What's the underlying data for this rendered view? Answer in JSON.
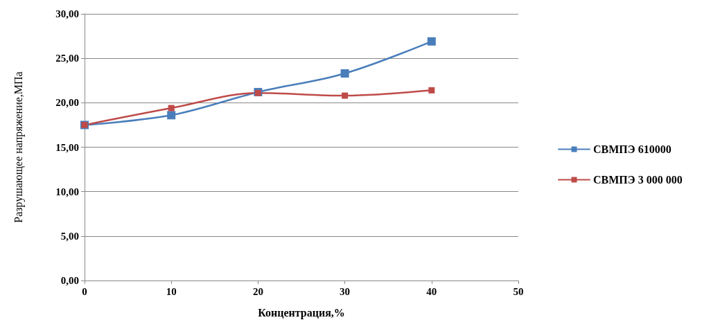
{
  "chart_data": {
    "type": "line",
    "xlabel": "Концентрация,%",
    "ylabel": "Разрушающее напряжение,МПа",
    "series": [
      {
        "name": "СВМПЭ 610000",
        "color": "#4a7ebb",
        "x": [
          0,
          10,
          20,
          30,
          40
        ],
        "values": [
          17.5,
          18.6,
          21.2,
          23.3,
          26.9
        ]
      },
      {
        "name": "СВМПЭ 3 000 000",
        "color": "#be4b48",
        "x": [
          0,
          10,
          20,
          30,
          40
        ],
        "values": [
          17.5,
          19.4,
          21.1,
          20.8,
          21.4
        ]
      }
    ],
    "xlim": [
      0,
      50
    ],
    "xticks": [
      0,
      10,
      20,
      30,
      40,
      50
    ],
    "ylim": [
      0,
      30
    ],
    "yticks": [
      {
        "value": 0,
        "label": "0,00"
      },
      {
        "value": 5,
        "label": "5,00"
      },
      {
        "value": 10,
        "label": "10,00"
      },
      {
        "value": 15,
        "label": "15,00"
      },
      {
        "value": 20,
        "label": "20,00"
      },
      {
        "value": 25,
        "label": "25,00"
      },
      {
        "value": 30,
        "label": "30,00"
      }
    ],
    "grid": "y",
    "legend": "right",
    "marker": "square",
    "line_style": "solid"
  }
}
